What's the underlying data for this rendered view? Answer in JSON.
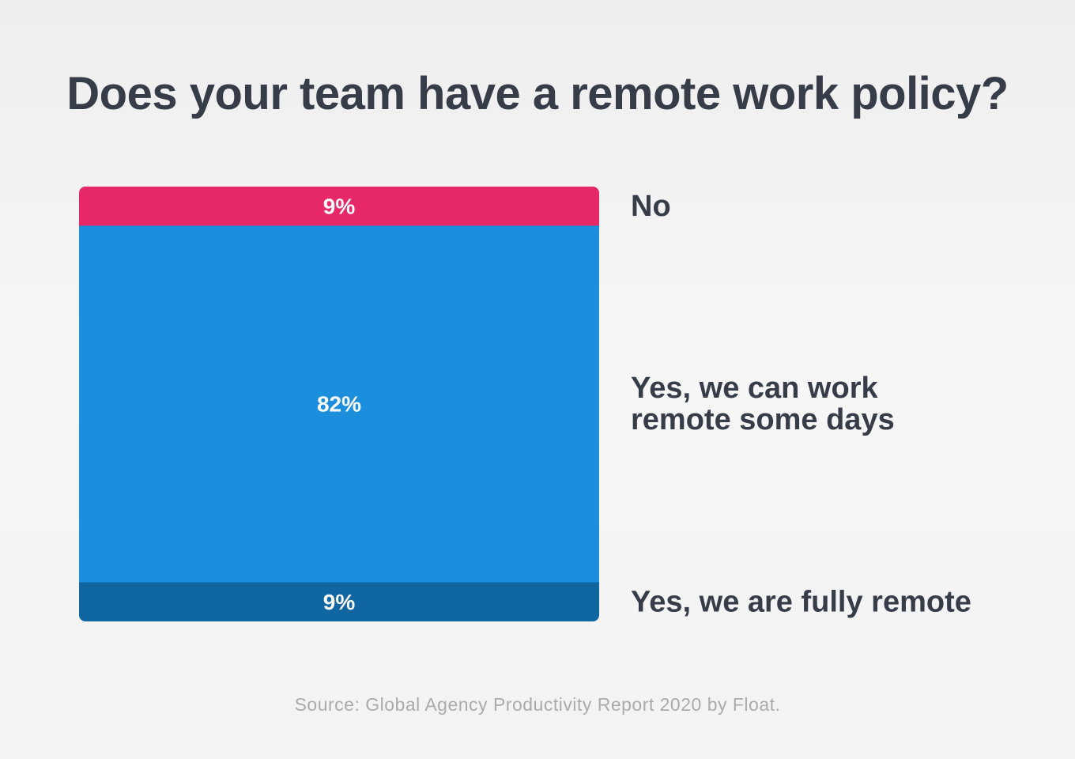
{
  "title": "Does your team have a remote work policy?",
  "source": "Source: Global Agency Productivity Report 2020 by Float.",
  "chart_data": {
    "type": "bar",
    "stacked": true,
    "orientation": "vertical",
    "title": "Does your team have a remote work policy?",
    "unit": "%",
    "total": 100,
    "segments": [
      {
        "name": "No",
        "lines": [
          "No"
        ],
        "value": 9,
        "label": "9%",
        "color": "#e72868"
      },
      {
        "name": "Yes, we can work remote some days",
        "lines": [
          "Yes, we can work",
          "remote some days"
        ],
        "value": 82,
        "label": "82%",
        "color": "#1b8fdd"
      },
      {
        "name": "Yes, we are fully remote",
        "lines": [
          "Yes, we are fully remote"
        ],
        "value": 9,
        "label": "9%",
        "color": "#0f66a1"
      }
    ]
  }
}
